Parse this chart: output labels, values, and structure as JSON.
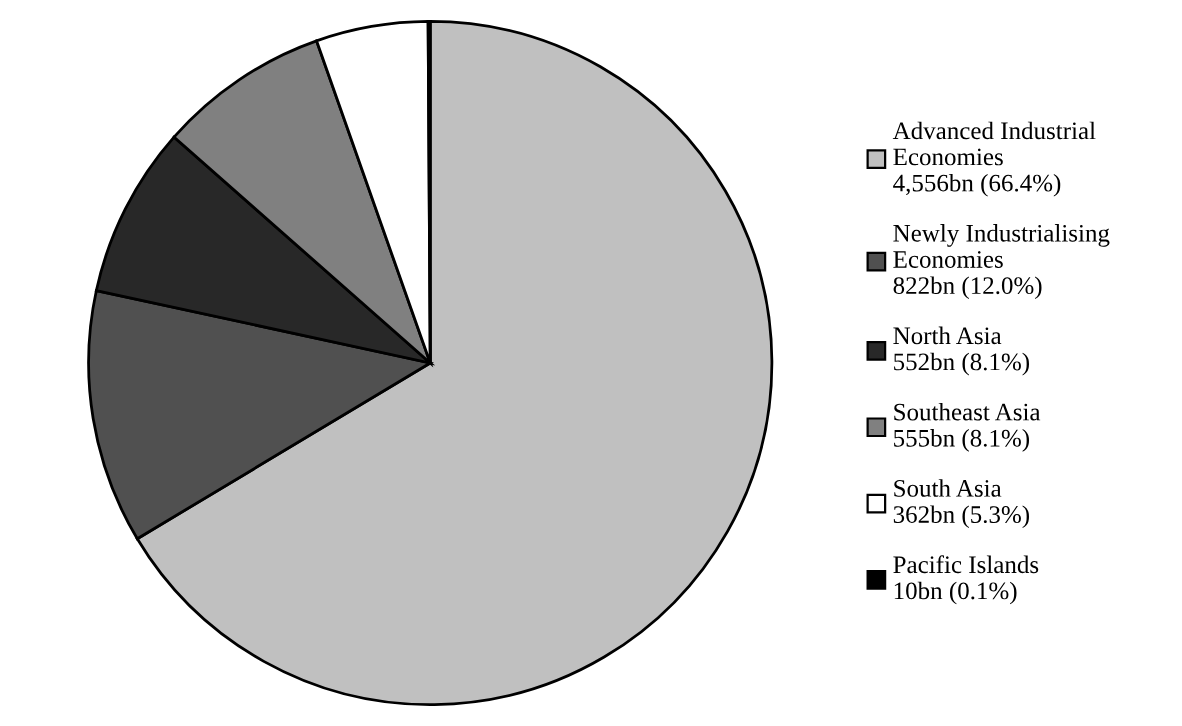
{
  "chart_data": {
    "type": "pie",
    "categories": [
      "Advanced Industrial\nEconomies",
      "Newly Industrialising\nEconomies",
      "North Asia",
      "Southeast Asia",
      "South Asia",
      "Pacific Islands"
    ],
    "values": [
      66.4,
      12.0,
      8.1,
      8.1,
      5.3,
      0.1
    ],
    "value_labels": [
      "4,556bn (66.4%)",
      "822bn (12.0%)",
      "552bn (8.1%)",
      "555bn (8.1%)",
      "362bn (5.3%)",
      "10bn (0.1%)"
    ],
    "colors": [
      "#c0c0c0",
      "#505050",
      "#282828",
      "#808080",
      "#ffffff",
      "#000000"
    ],
    "legend": "right"
  }
}
